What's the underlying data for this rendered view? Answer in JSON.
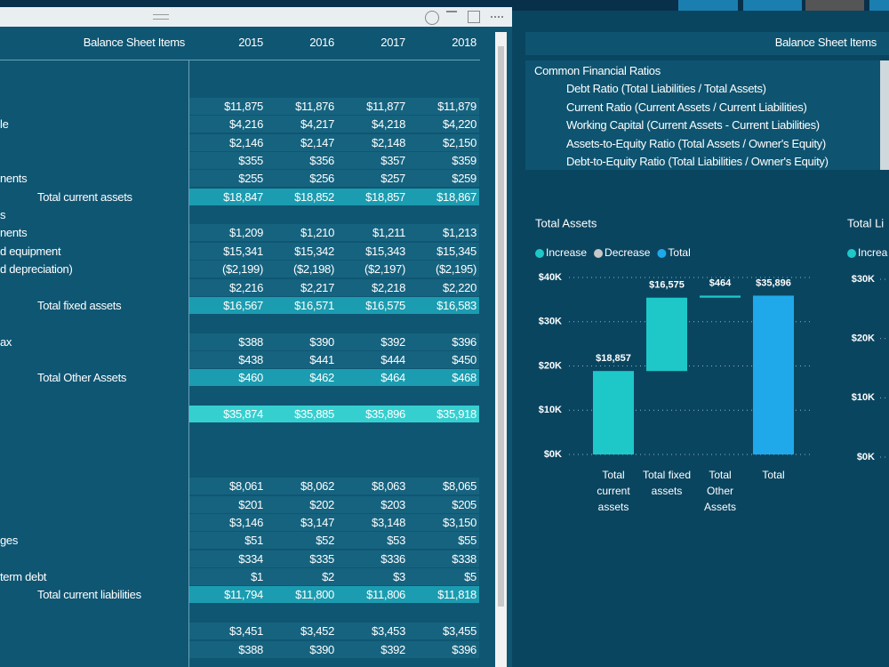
{
  "table": {
    "header": {
      "title": "Balance Sheet Items",
      "years": [
        "2015",
        "2016",
        "2017",
        "2018"
      ]
    },
    "rows": [
      {
        "label": null,
        "style": "detail",
        "values": [
          "$11,875",
          "$11,876",
          "$11,877",
          "$11,879"
        ]
      },
      {
        "label": "le",
        "style": "detail",
        "values": [
          "$4,216",
          "$4,217",
          "$4,218",
          "$4,220"
        ]
      },
      {
        "label": null,
        "style": "detail",
        "values": [
          "$2,146",
          "$2,147",
          "$2,148",
          "$2,150"
        ]
      },
      {
        "label": null,
        "style": "detail",
        "values": [
          "$355",
          "$356",
          "$357",
          "$359"
        ]
      },
      {
        "label": "nents",
        "style": "detail",
        "values": [
          "$255",
          "$256",
          "$257",
          "$259"
        ]
      },
      {
        "label": "Total current assets",
        "style": "total",
        "values": [
          "$18,847",
          "$18,852",
          "$18,857",
          "$18,867"
        ]
      },
      {
        "label": "s",
        "style": "blank",
        "values": null
      },
      {
        "label": "nents",
        "style": "detail",
        "values": [
          "$1,209",
          "$1,210",
          "$1,211",
          "$1,213"
        ]
      },
      {
        "label": "d equipment",
        "style": "detail",
        "values": [
          "$15,341",
          "$15,342",
          "$15,343",
          "$15,345"
        ]
      },
      {
        "label": "d depreciation)",
        "style": "detail",
        "values": [
          "($2,199)",
          "($2,198)",
          "($2,197)",
          "($2,195)"
        ]
      },
      {
        "label": null,
        "style": "detail",
        "values": [
          "$2,216",
          "$2,217",
          "$2,218",
          "$2,220"
        ]
      },
      {
        "label": "Total fixed assets",
        "style": "total",
        "values": [
          "$16,567",
          "$16,571",
          "$16,575",
          "$16,583"
        ]
      },
      {
        "label": null,
        "style": "blank",
        "values": null
      },
      {
        "label": "ax",
        "style": "detail",
        "values": [
          "$388",
          "$390",
          "$392",
          "$396"
        ]
      },
      {
        "label": null,
        "style": "detail",
        "values": [
          "$438",
          "$441",
          "$444",
          "$450"
        ]
      },
      {
        "label": "Total Other Assets",
        "style": "total",
        "values": [
          "$460",
          "$462",
          "$464",
          "$468"
        ]
      },
      {
        "label": null,
        "style": "blank",
        "values": null
      },
      {
        "label": null,
        "style": "grand",
        "values": [
          "$35,874",
          "$35,885",
          "$35,896",
          "$35,918"
        ]
      },
      {
        "label": null,
        "style": "blank",
        "values": null
      },
      {
        "label": null,
        "style": "blank",
        "values": null
      },
      {
        "label": null,
        "style": "blank",
        "values": null
      },
      {
        "label": null,
        "style": "detail",
        "values": [
          "$8,061",
          "$8,062",
          "$8,063",
          "$8,065"
        ]
      },
      {
        "label": null,
        "style": "detail",
        "values": [
          "$201",
          "$202",
          "$203",
          "$205"
        ]
      },
      {
        "label": null,
        "style": "detail",
        "values": [
          "$3,146",
          "$3,147",
          "$3,148",
          "$3,150"
        ]
      },
      {
        "label": "ges",
        "style": "detail",
        "values": [
          "$51",
          "$52",
          "$53",
          "$55"
        ]
      },
      {
        "label": null,
        "style": "detail",
        "values": [
          "$334",
          "$335",
          "$336",
          "$338"
        ]
      },
      {
        "label": "term debt",
        "style": "detail",
        "values": [
          "$1",
          "$2",
          "$3",
          "$5"
        ]
      },
      {
        "label": "Total current liabilities",
        "style": "total",
        "values": [
          "$11,794",
          "$11,800",
          "$11,806",
          "$11,818"
        ]
      },
      {
        "label": null,
        "style": "blank",
        "values": null
      },
      {
        "label": null,
        "style": "detail",
        "values": [
          "$3,451",
          "$3,452",
          "$3,453",
          "$3,455"
        ]
      },
      {
        "label": null,
        "style": "detail",
        "values": [
          "$388",
          "$390",
          "$392",
          "$396"
        ]
      }
    ]
  },
  "slicer": {
    "title": "Balance Sheet Items",
    "group": "Common Financial Ratios",
    "items": [
      "Debt Ratio (Total Liabilities / Total Assets)",
      "Current Ratio (Current Assets / Current Liabilities)",
      "Working Capital (Current Assets - Current Liabilities)",
      "Assets-to-Equity Ratio (Total Assets / Owner's Equity)",
      "Debt-to-Equity Ratio (Total Liabilities / Owner's Equity)"
    ]
  },
  "chart_data": [
    {
      "type": "waterfall",
      "title": "Total Assets",
      "legend": [
        {
          "name": "Increase",
          "color": "#1ec8c8"
        },
        {
          "name": "Decrease",
          "color": "#c8c8c8"
        },
        {
          "name": "Total",
          "color": "#1fa9ea"
        }
      ],
      "categories": [
        "Total current assets",
        "Total fixed assets",
        "Total Other Assets",
        "Total"
      ],
      "kinds": [
        "Increase",
        "Increase",
        "Increase",
        "Total"
      ],
      "values": [
        18857,
        16575,
        464,
        35896
      ],
      "value_labels": [
        "$18,857",
        "$16,575",
        "$464",
        "$35,896"
      ],
      "ylim": [
        0,
        40000
      ],
      "yticks": [
        {
          "value": 0,
          "label": "$0K"
        },
        {
          "value": 10000,
          "label": "$10K"
        },
        {
          "value": 20000,
          "label": "$20K"
        },
        {
          "value": 30000,
          "label": "$30K"
        },
        {
          "value": 40000,
          "label": "$40K"
        }
      ],
      "grid": true
    },
    {
      "type": "waterfall",
      "title": "Total Li",
      "legend": [
        {
          "name": "Increa",
          "color": "#1ec8c8"
        }
      ],
      "categories": [],
      "kinds": [],
      "values": [],
      "value_labels": [],
      "ylim": [
        0,
        30000
      ],
      "yticks": [
        {
          "value": 0,
          "label": "$0K"
        },
        {
          "value": 10000,
          "label": "$10K"
        },
        {
          "value": 20000,
          "label": "$20K"
        },
        {
          "value": 30000,
          "label": "$30K"
        }
      ],
      "grid": true
    }
  ]
}
